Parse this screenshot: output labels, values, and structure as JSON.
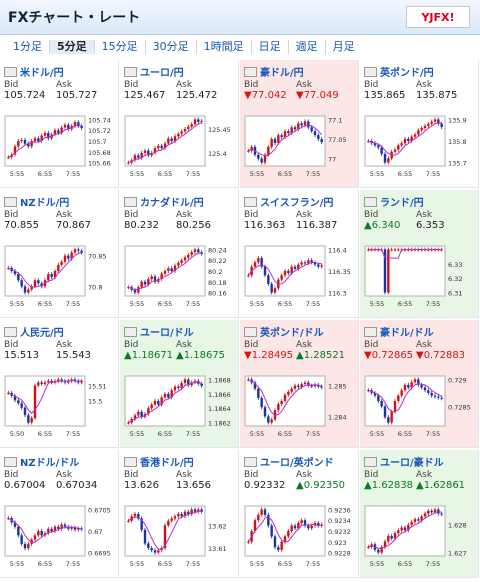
{
  "header": {
    "title": "FXチャート・レート",
    "logo": "YJFX!"
  },
  "tabs": [
    {
      "label": "1分足",
      "selected": false
    },
    {
      "label": "5分足",
      "selected": true
    },
    {
      "label": "15分足",
      "selected": false
    },
    {
      "label": "30分足",
      "selected": false
    },
    {
      "label": "1時間足",
      "selected": false
    },
    {
      "label": "日足",
      "selected": false
    },
    {
      "label": "週足",
      "selected": false
    },
    {
      "label": "月足",
      "selected": false
    }
  ],
  "labels": {
    "bid": "Bid",
    "ask": "Ask"
  },
  "colors": {
    "up": "#0a7a25",
    "down": "#d11111",
    "candle_up": "#d11111",
    "candle_down": "#1733a6",
    "ma": "#b530c8"
  },
  "pairs": [
    {
      "name": "米ドル/円",
      "bid": "105.724",
      "ask": "105.727",
      "status": "none",
      "chart_data": {
        "type": "candlestick",
        "yticks": [
          "105.74",
          "105.72",
          "105.7",
          "105.68",
          "105.66"
        ],
        "xticks": [
          "5:55",
          "6:55",
          "7:55"
        ],
        "close": [
          105.67,
          105.675,
          105.69,
          105.7,
          105.702,
          105.695,
          105.69,
          105.7,
          105.705,
          105.7,
          105.71,
          105.715,
          105.705,
          105.712,
          105.72,
          105.715,
          105.725,
          105.73,
          105.722,
          105.728,
          105.735,
          105.728,
          105.724
        ]
      }
    },
    {
      "name": "ユーロ/円",
      "bid": "125.467",
      "ask": "125.472",
      "status": "none",
      "chart_data": {
        "type": "candlestick",
        "yticks": [
          "125.45",
          "125.4"
        ],
        "xticks": [
          "5:55",
          "6:55",
          "7:55"
        ],
        "close": [
          125.38,
          125.385,
          125.395,
          125.39,
          125.4,
          125.405,
          125.395,
          125.4,
          125.41,
          125.415,
          125.41,
          125.42,
          125.43,
          125.425,
          125.435,
          125.44,
          125.445,
          125.45,
          125.455,
          125.46,
          125.47,
          125.465,
          125.467
        ]
      }
    },
    {
      "name": "豪ドル/円",
      "bid": "▼77.042",
      "ask": "▼77.049",
      "status": "down",
      "chart_data": {
        "type": "candlestick",
        "yticks": [
          "77.1",
          "77.05",
          "77"
        ],
        "xticks": [
          "5:55",
          "6:55",
          "7:55"
        ],
        "close": [
          77.02,
          77.03,
          77.01,
          77.0,
          76.99,
          77.01,
          77.03,
          77.05,
          77.04,
          77.06,
          77.055,
          77.07,
          77.065,
          77.08,
          77.075,
          77.09,
          77.085,
          77.095,
          77.08,
          77.07,
          77.06,
          77.05,
          77.042
        ]
      }
    },
    {
      "name": "英ポンド/円",
      "bid": "135.865",
      "ask": "135.875",
      "status": "none",
      "chart_data": {
        "type": "candlestick",
        "yticks": [
          "135.9",
          "135.8",
          "135.7"
        ],
        "xticks": [
          "5:55",
          "6:55",
          "7:55"
        ],
        "close": [
          135.8,
          135.79,
          135.78,
          135.77,
          135.74,
          135.7,
          135.72,
          135.75,
          135.76,
          135.78,
          135.79,
          135.81,
          135.8,
          135.82,
          135.83,
          135.85,
          135.86,
          135.87,
          135.88,
          135.89,
          135.9,
          135.88,
          135.865
        ]
      }
    },
    {
      "name": "NZドル/円",
      "bid": "70.855",
      "ask": "70.867",
      "status": "none",
      "chart_data": {
        "type": "candlestick",
        "yticks": [
          "70.85",
          "70.8"
        ],
        "xticks": [
          "5:55",
          "6:55",
          "7:55"
        ],
        "close": [
          70.83,
          70.825,
          70.82,
          70.81,
          70.8,
          70.79,
          70.795,
          70.8,
          70.81,
          70.805,
          70.8,
          70.81,
          70.82,
          70.815,
          70.825,
          70.835,
          70.84,
          70.85,
          70.845,
          70.855,
          70.86,
          70.858,
          70.855
        ]
      }
    },
    {
      "name": "カナダドル/円",
      "bid": "80.232",
      "ask": "80.256",
      "status": "none",
      "chart_data": {
        "type": "candlestick",
        "yticks": [
          "80.24",
          "80.22",
          "80.2",
          "80.18",
          "80.16"
        ],
        "xticks": [
          "5:55",
          "6:55",
          "7:55"
        ],
        "close": [
          80.17,
          80.165,
          80.16,
          80.17,
          80.18,
          80.175,
          80.185,
          80.19,
          80.18,
          80.185,
          80.195,
          80.2,
          80.205,
          80.2,
          80.21,
          80.215,
          80.22,
          80.225,
          80.23,
          80.235,
          80.24,
          80.235,
          80.232
        ]
      }
    },
    {
      "name": "スイスフラン/円",
      "bid": "116.363",
      "ask": "116.387",
      "status": "none",
      "chart_data": {
        "type": "candlestick",
        "yticks": [
          "116.4",
          "116.35",
          "116.3"
        ],
        "xticks": [
          "5:55",
          "6:55",
          "7:55"
        ],
        "close": [
          116.34,
          116.36,
          116.37,
          116.38,
          116.36,
          116.34,
          116.32,
          116.3,
          116.31,
          116.33,
          116.34,
          116.35,
          116.345,
          116.36,
          116.355,
          116.365,
          116.37,
          116.368,
          116.375,
          116.37,
          116.365,
          116.36,
          116.363
        ]
      }
    },
    {
      "name": "ランド/円",
      "bid": "▲6.340",
      "ask": "6.353",
      "status": "up",
      "chart_data": {
        "type": "candlestick",
        "yticks": [
          "6.33",
          "6.32",
          "6.31"
        ],
        "xticks": [
          "5:55",
          "6:55",
          "7:55"
        ],
        "close": [
          6.34,
          6.34,
          6.34,
          6.34,
          6.34,
          6.31,
          6.34,
          6.34,
          6.34,
          6.34,
          6.34,
          6.34,
          6.34,
          6.34,
          6.34,
          6.34,
          6.34,
          6.34,
          6.34,
          6.34,
          6.34,
          6.34,
          6.34
        ]
      }
    },
    {
      "name": "人民元/円",
      "bid": "15.513",
      "ask": "15.543",
      "status": "none",
      "chart_data": {
        "type": "candlestick",
        "yticks": [
          "15.51",
          "15.5"
        ],
        "xticks": [
          "5:50",
          "6:55",
          "7:55"
        ],
        "close": [
          15.505,
          15.503,
          15.5,
          15.498,
          15.495,
          15.49,
          15.485,
          15.488,
          15.51,
          15.512,
          15.511,
          15.512,
          15.513,
          15.512,
          15.513,
          15.514,
          15.513,
          15.512,
          15.513,
          15.514,
          15.513,
          15.512,
          15.513
        ]
      }
    },
    {
      "name": "ユーロ/ドル",
      "bid": "▲1.18671",
      "ask": "▲1.18675",
      "status": "up",
      "chart_data": {
        "type": "candlestick",
        "yticks": [
          "1.1868",
          "1.1866",
          "1.1864",
          "1.1862"
        ],
        "xticks": [
          "5:55",
          "6:55",
          "7:55"
        ],
        "close": [
          1.1862,
          1.18625,
          1.1863,
          1.18635,
          1.18628,
          1.18632,
          1.1864,
          1.18645,
          1.1865,
          1.18645,
          1.18655,
          1.1866,
          1.18655,
          1.18665,
          1.1867,
          1.18668,
          1.18675,
          1.1868,
          1.18672,
          1.18676,
          1.18678,
          1.18674,
          1.18671
        ]
      }
    },
    {
      "name": "英ポンド/ドル",
      "bid": "▼1.28495",
      "ask": "▲1.28521",
      "status": "down",
      "chart_data": {
        "type": "candlestick",
        "yticks": [
          "1.285",
          "1.284"
        ],
        "xticks": [
          "5:55",
          "6:55",
          "7:55"
        ],
        "close": [
          1.2852,
          1.2851,
          1.2849,
          1.2846,
          1.2843,
          1.284,
          1.2838,
          1.2839,
          1.2842,
          1.2844,
          1.2845,
          1.2847,
          1.2848,
          1.2849,
          1.285,
          1.28495,
          1.28505,
          1.2851,
          1.285,
          1.28498,
          1.28502,
          1.28497,
          1.28495
        ]
      }
    },
    {
      "name": "豪ドル/ドル",
      "bid": "▼0.72865",
      "ask": "▼0.72883",
      "status": "down",
      "chart_data": {
        "type": "candlestick",
        "yticks": [
          "0.729",
          "0.7285"
        ],
        "xticks": [
          "5:55",
          "6:55",
          "7:55"
        ],
        "close": [
          0.7288,
          0.72875,
          0.7287,
          0.7286,
          0.7285,
          0.7283,
          0.7282,
          0.7284,
          0.7286,
          0.7287,
          0.7288,
          0.7289,
          0.72885,
          0.72895,
          0.729,
          0.7289,
          0.72885,
          0.7288,
          0.72875,
          0.7287,
          0.72868,
          0.72866,
          0.72865
        ]
      }
    },
    {
      "name": "NZドル/ドル",
      "bid": "0.67004",
      "ask": "0.67034",
      "status": "none",
      "chart_data": {
        "type": "candlestick",
        "yticks": [
          "0.6705",
          "0.67",
          "0.6695"
        ],
        "xticks": [
          "5:55",
          "6:55",
          "7:55"
        ],
        "close": [
          0.6703,
          0.6702,
          0.6701,
          0.6699,
          0.6697,
          0.6696,
          0.6697,
          0.6698,
          0.6699,
          0.67,
          0.6699,
          0.66995,
          0.67005,
          0.67,
          0.6701,
          0.67005,
          0.67015,
          0.6701,
          0.67005,
          0.67008,
          0.67003,
          0.67006,
          0.67004
        ]
      }
    },
    {
      "name": "香港ドル/円",
      "bid": "13.626",
      "ask": "13.656",
      "status": "none",
      "chart_data": {
        "type": "candlestick",
        "yticks": [
          "13.62",
          "13.61"
        ],
        "xticks": [
          "5:55",
          "6:55",
          "7:55"
        ],
        "close": [
          13.622,
          13.624,
          13.625,
          13.623,
          13.618,
          13.612,
          13.61,
          13.609,
          13.608,
          13.609,
          13.61,
          13.62,
          13.622,
          13.623,
          13.624,
          13.625,
          13.624,
          13.626,
          13.625,
          13.627,
          13.626,
          13.627,
          13.626
        ]
      }
    },
    {
      "name": "ユーロ/英ポンド",
      "bid": "0.92332",
      "ask": "▲0.92350",
      "status": "none",
      "chart_data": {
        "type": "candlestick",
        "yticks": [
          "0.9236",
          "0.9234",
          "0.9232",
          "0.923",
          "0.9228"
        ],
        "xticks": [
          "5:55",
          "6:55",
          "7:55"
        ],
        "close": [
          0.923,
          0.9232,
          0.9234,
          0.9235,
          0.9236,
          0.9235,
          0.9233,
          0.9231,
          0.9229,
          0.92285,
          0.923,
          0.9231,
          0.9232,
          0.9233,
          0.92325,
          0.92335,
          0.9234,
          0.9233,
          0.92325,
          0.9233,
          0.92335,
          0.9233,
          0.92332
        ]
      }
    },
    {
      "name": "ユーロ/豪ドル",
      "bid": "▲1.62838",
      "ask": "▲1.62861",
      "status": "up",
      "chart_data": {
        "type": "candlestick",
        "yticks": [
          "1.628",
          "1.627"
        ],
        "xticks": [
          "5:55",
          "6:55",
          "7:55"
        ],
        "close": [
          1.6272,
          1.6273,
          1.6271,
          1.627,
          1.6272,
          1.6274,
          1.6276,
          1.6275,
          1.6277,
          1.6278,
          1.6279,
          1.6278,
          1.628,
          1.6281,
          1.6282,
          1.62815,
          1.6283,
          1.6284,
          1.6285,
          1.62845,
          1.62855,
          1.6284,
          1.62838
        ]
      }
    }
  ]
}
